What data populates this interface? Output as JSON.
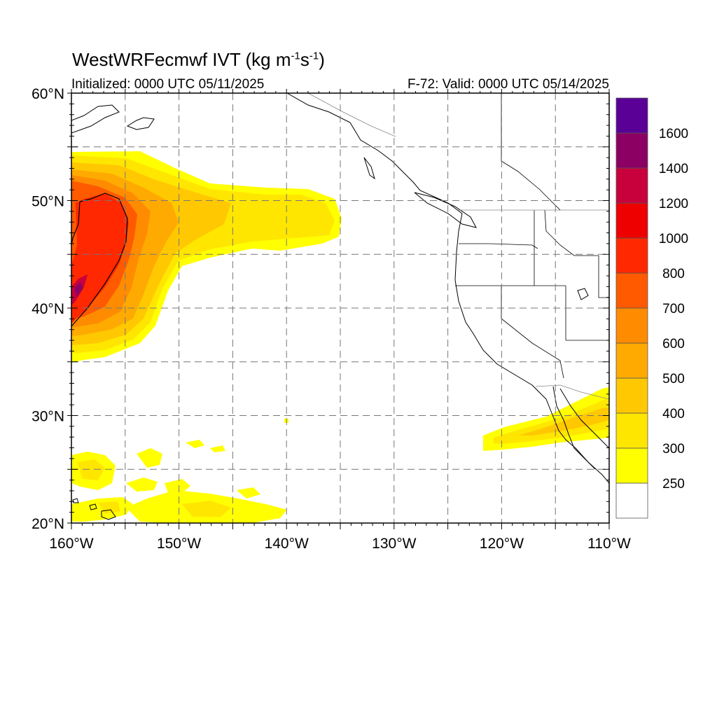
{
  "title": {
    "main": "WestWRFecmwf IVT (kg m",
    "sup1": "-1",
    "mid": "s",
    "sup2": "-1",
    "end": ")"
  },
  "subtitle_left": "Initialized: 0000 UTC 05/11/2025",
  "subtitle_right": "F-72: Valid: 0000 UTC 05/14/2025",
  "lat_labels": [
    "60°N",
    "50°N",
    "40°N",
    "30°N",
    "20°N"
  ],
  "lon_labels": [
    "160°W",
    "150°W",
    "140°W",
    "130°W",
    "120°W",
    "110°W"
  ],
  "colorbar": {
    "labels": [
      "250",
      "300",
      "400",
      "500",
      "600",
      "700",
      "800",
      "1000",
      "1200",
      "1400",
      "1600"
    ],
    "colors": [
      "#ffffff",
      "#ffff00",
      "#ffe600",
      "#ffc800",
      "#ffaa00",
      "#ff8c00",
      "#ff5a00",
      "#ff2800",
      "#ee0000",
      "#c8003c",
      "#8c0064",
      "#5a0096"
    ]
  },
  "colors": {
    "gridline": "#777777",
    "coast": "#000000",
    "frame": "#000000"
  }
}
